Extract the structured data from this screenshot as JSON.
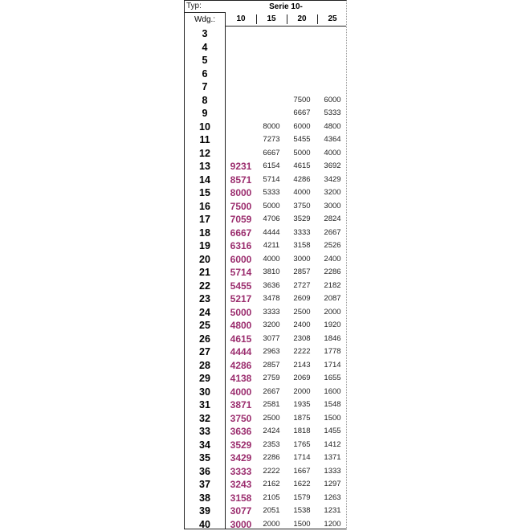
{
  "header": {
    "typ_label": "Typ:",
    "serie_label": "Serie 10-",
    "wdg_label": "Wdg.:",
    "columns": [
      "10",
      "15",
      "20",
      "25"
    ]
  },
  "colors": {
    "highlight": "#9b2d6e",
    "text": "#222222"
  },
  "rows": [
    [
      "3",
      "",
      "",
      "",
      ""
    ],
    [
      "4",
      "",
      "",
      "",
      ""
    ],
    [
      "5",
      "",
      "",
      "",
      ""
    ],
    [
      "6",
      "",
      "",
      "",
      ""
    ],
    [
      "7",
      "",
      "",
      "",
      ""
    ],
    [
      "8",
      "",
      "",
      "7500",
      "6000"
    ],
    [
      "9",
      "",
      "",
      "6667",
      "5333"
    ],
    [
      "10",
      "",
      "8000",
      "6000",
      "4800"
    ],
    [
      "11",
      "",
      "7273",
      "5455",
      "4364"
    ],
    [
      "12",
      "",
      "6667",
      "5000",
      "4000"
    ],
    [
      "13",
      "9231",
      "6154",
      "4615",
      "3692"
    ],
    [
      "14",
      "8571",
      "5714",
      "4286",
      "3429"
    ],
    [
      "15",
      "8000",
      "5333",
      "4000",
      "3200"
    ],
    [
      "16",
      "7500",
      "5000",
      "3750",
      "3000"
    ],
    [
      "17",
      "7059",
      "4706",
      "3529",
      "2824"
    ],
    [
      "18",
      "6667",
      "4444",
      "3333",
      "2667"
    ],
    [
      "19",
      "6316",
      "4211",
      "3158",
      "2526"
    ],
    [
      "20",
      "6000",
      "4000",
      "3000",
      "2400"
    ],
    [
      "21",
      "5714",
      "3810",
      "2857",
      "2286"
    ],
    [
      "22",
      "5455",
      "3636",
      "2727",
      "2182"
    ],
    [
      "23",
      "5217",
      "3478",
      "2609",
      "2087"
    ],
    [
      "24",
      "5000",
      "3333",
      "2500",
      "2000"
    ],
    [
      "25",
      "4800",
      "3200",
      "2400",
      "1920"
    ],
    [
      "26",
      "4615",
      "3077",
      "2308",
      "1846"
    ],
    [
      "27",
      "4444",
      "2963",
      "2222",
      "1778"
    ],
    [
      "28",
      "4286",
      "2857",
      "2143",
      "1714"
    ],
    [
      "29",
      "4138",
      "2759",
      "2069",
      "1655"
    ],
    [
      "30",
      "4000",
      "2667",
      "2000",
      "1600"
    ],
    [
      "31",
      "3871",
      "2581",
      "1935",
      "1548"
    ],
    [
      "32",
      "3750",
      "2500",
      "1875",
      "1500"
    ],
    [
      "33",
      "3636",
      "2424",
      "1818",
      "1455"
    ],
    [
      "34",
      "3529",
      "2353",
      "1765",
      "1412"
    ],
    [
      "35",
      "3429",
      "2286",
      "1714",
      "1371"
    ],
    [
      "36",
      "3333",
      "2222",
      "1667",
      "1333"
    ],
    [
      "37",
      "3243",
      "2162",
      "1622",
      "1297"
    ],
    [
      "38",
      "3158",
      "2105",
      "1579",
      "1263"
    ],
    [
      "39",
      "3077",
      "2051",
      "1538",
      "1231"
    ],
    [
      "40",
      "3000",
      "2000",
      "1500",
      "1200"
    ]
  ]
}
